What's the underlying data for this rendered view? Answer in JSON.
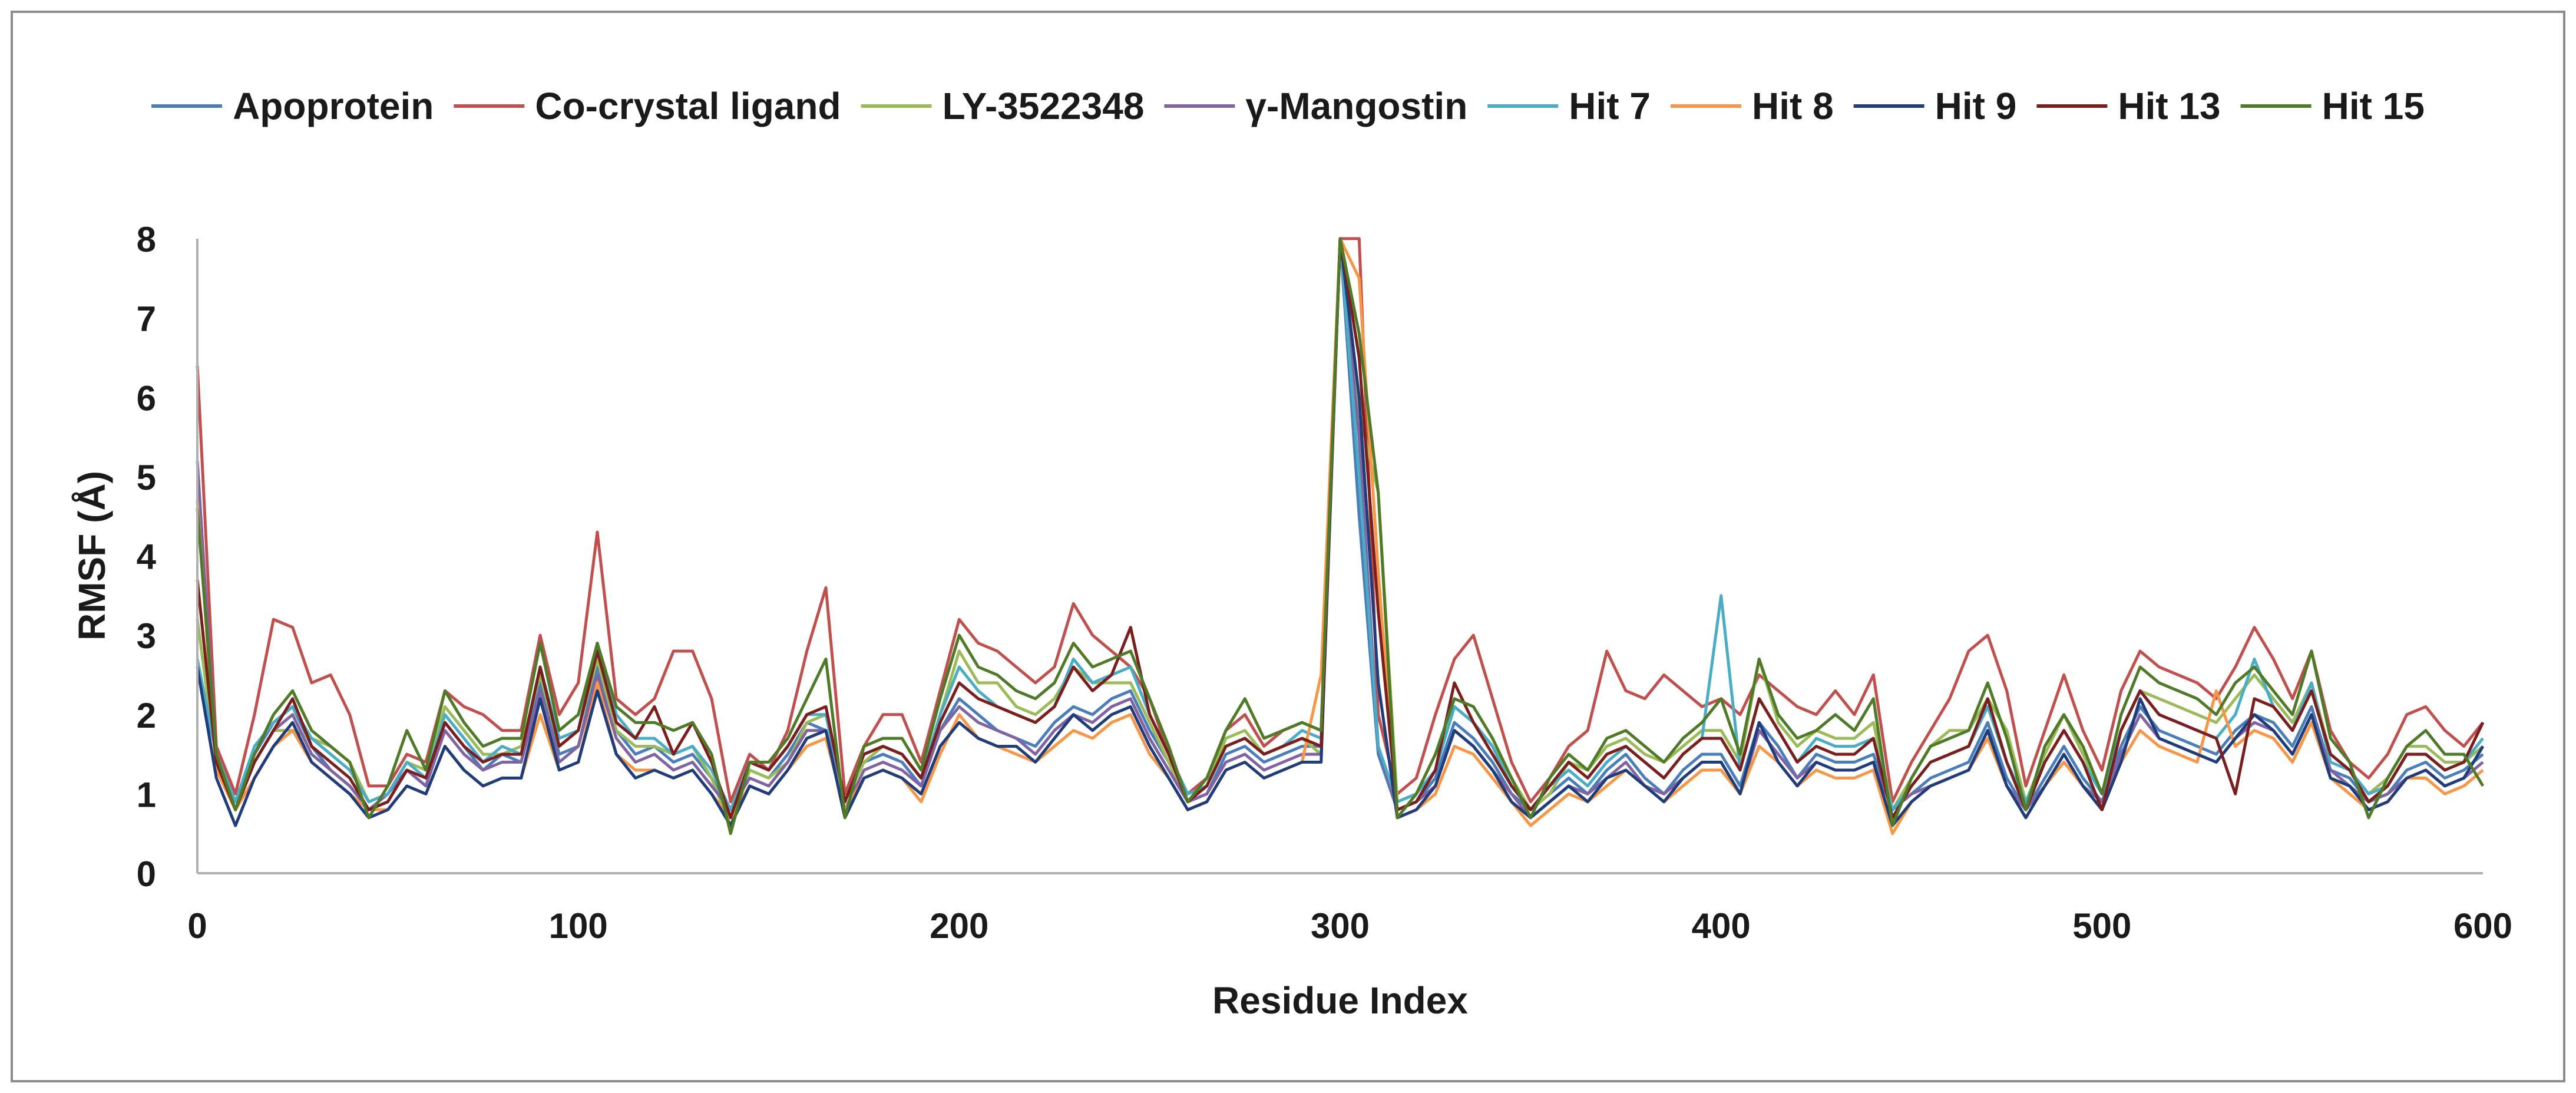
{
  "chart_data": {
    "type": "line",
    "title": "",
    "xlabel": "Residue Index",
    "ylabel": "RMSF (Å)",
    "xlim": [
      0,
      600
    ],
    "ylim": [
      0,
      8
    ],
    "xticks": [
      0,
      100,
      200,
      300,
      400,
      500,
      600
    ],
    "yticks": [
      0,
      1,
      2,
      3,
      4,
      5,
      6,
      7,
      8
    ],
    "x_tick_labels": [
      "0",
      "100",
      "200",
      "300",
      "400",
      "500",
      "600"
    ],
    "y_tick_labels": [
      "0",
      "1",
      "2",
      "3",
      "4",
      "5",
      "6",
      "7",
      "8"
    ],
    "grid": false,
    "legend_position": "top",
    "x": [
      0,
      5,
      10,
      15,
      20,
      25,
      30,
      35,
      40,
      45,
      50,
      55,
      60,
      65,
      70,
      75,
      80,
      85,
      90,
      95,
      100,
      105,
      110,
      115,
      120,
      125,
      130,
      135,
      140,
      145,
      150,
      155,
      160,
      165,
      170,
      175,
      180,
      185,
      190,
      195,
      200,
      205,
      210,
      215,
      220,
      225,
      230,
      235,
      240,
      245,
      250,
      255,
      260,
      265,
      270,
      275,
      280,
      285,
      290,
      295,
      300,
      305,
      310,
      315,
      320,
      325,
      330,
      335,
      340,
      345,
      350,
      355,
      360,
      365,
      370,
      375,
      380,
      385,
      390,
      395,
      400,
      405,
      410,
      415,
      420,
      425,
      430,
      435,
      440,
      445,
      450,
      455,
      460,
      465,
      470,
      475,
      480,
      485,
      490,
      495,
      500,
      505,
      510,
      515,
      520,
      525,
      530,
      535,
      540,
      545,
      550,
      555,
      560,
      565,
      570,
      575,
      580,
      585,
      590,
      595,
      600
    ],
    "series": [
      {
        "name": "Apoprotein",
        "color": "#4a7ebb",
        "values": [
          2.6,
          1.5,
          0.9,
          1.5,
          1.9,
          2.1,
          1.6,
          1.3,
          1.1,
          0.8,
          0.9,
          1.3,
          1.1,
          1.9,
          1.6,
          1.3,
          1.5,
          1.4,
          2.4,
          1.5,
          1.6,
          2.6,
          1.8,
          1.5,
          1.6,
          1.4,
          1.5,
          1.2,
          0.8,
          1.3,
          1.2,
          1.5,
          1.9,
          1.8,
          0.9,
          1.4,
          1.5,
          1.4,
          1.1,
          1.8,
          2.2,
          2.0,
          1.8,
          1.7,
          1.6,
          1.9,
          2.1,
          2.0,
          2.2,
          2.3,
          1.8,
          1.4,
          0.9,
          1.0,
          1.5,
          1.6,
          1.4,
          1.5,
          1.6,
          1.6,
          8.0,
          4.5,
          1.5,
          0.8,
          0.9,
          1.2,
          1.9,
          1.7,
          1.4,
          1.0,
          0.8,
          1.0,
          1.2,
          1.0,
          1.3,
          1.5,
          1.2,
          1.0,
          1.3,
          1.5,
          1.5,
          1.1,
          1.9,
          1.6,
          1.2,
          1.5,
          1.4,
          1.4,
          1.5,
          0.8,
          1.0,
          1.2,
          1.3,
          1.4,
          1.9,
          1.2,
          0.8,
          1.2,
          1.6,
          1.2,
          0.9,
          1.6,
          2.1,
          1.8,
          1.7,
          1.6,
          1.5,
          1.8,
          2.0,
          1.9,
          1.6,
          2.1,
          1.3,
          1.2,
          0.9,
          1.0,
          1.3,
          1.4,
          1.2,
          1.3,
          1.5
        ]
      },
      {
        "name": "Co-crystal ligand",
        "color": "#c0504d",
        "values": [
          6.4,
          1.6,
          1.0,
          2.0,
          3.2,
          3.1,
          2.4,
          2.5,
          2.0,
          1.1,
          1.1,
          1.5,
          1.4,
          2.3,
          2.1,
          2.0,
          1.8,
          1.8,
          3.0,
          2.0,
          2.4,
          4.3,
          2.2,
          2.0,
          2.2,
          2.8,
          2.8,
          2.2,
          0.9,
          1.5,
          1.3,
          1.8,
          2.8,
          3.6,
          1.0,
          1.6,
          2.0,
          2.0,
          1.4,
          2.3,
          3.2,
          2.9,
          2.8,
          2.6,
          2.4,
          2.6,
          3.4,
          3.0,
          2.8,
          2.6,
          2.2,
          1.5,
          1.0,
          1.2,
          1.8,
          2.0,
          1.6,
          1.8,
          1.9,
          1.8,
          8.0,
          8.0,
          2.0,
          1.0,
          1.2,
          2.0,
          2.7,
          3.0,
          2.2,
          1.4,
          0.9,
          1.2,
          1.6,
          1.8,
          2.8,
          2.3,
          2.2,
          2.5,
          2.3,
          2.1,
          2.2,
          2.0,
          2.5,
          2.3,
          2.1,
          2.0,
          2.3,
          2.0,
          2.5,
          0.9,
          1.4,
          1.8,
          2.2,
          2.8,
          3.0,
          2.3,
          1.1,
          1.8,
          2.5,
          1.8,
          1.3,
          2.3,
          2.8,
          2.6,
          2.5,
          2.4,
          2.2,
          2.6,
          3.1,
          2.7,
          2.2,
          2.8,
          1.8,
          1.4,
          1.2,
          1.5,
          2.0,
          2.1,
          1.8,
          1.6,
          1.9
        ]
      },
      {
        "name": "LY-3522348",
        "color": "#9bbb59",
        "values": [
          3.2,
          1.4,
          0.9,
          1.4,
          1.8,
          1.8,
          1.7,
          1.6,
          1.4,
          0.9,
          1.0,
          1.4,
          1.3,
          2.1,
          1.8,
          1.5,
          1.5,
          1.6,
          2.5,
          1.6,
          1.8,
          2.7,
          1.8,
          1.6,
          1.6,
          1.5,
          1.6,
          1.2,
          0.6,
          1.3,
          1.2,
          1.4,
          1.9,
          2.0,
          0.9,
          1.4,
          1.6,
          1.5,
          1.2,
          2.0,
          2.8,
          2.4,
          2.4,
          2.1,
          2.0,
          2.2,
          2.6,
          2.4,
          2.4,
          2.4,
          1.9,
          1.4,
          0.9,
          1.1,
          1.7,
          1.8,
          1.5,
          1.6,
          1.7,
          1.5,
          8.0,
          5.8,
          4.8,
          0.9,
          1.0,
          1.5,
          2.1,
          1.9,
          1.6,
          1.2,
          0.8,
          1.0,
          1.4,
          1.3,
          1.6,
          1.7,
          1.5,
          1.4,
          1.6,
          1.8,
          1.8,
          1.4,
          2.7,
          1.9,
          1.6,
          1.8,
          1.7,
          1.7,
          1.9,
          0.8,
          1.2,
          1.6,
          1.8,
          1.8,
          2.2,
          1.8,
          0.9,
          1.5,
          2.0,
          1.5,
          1.0,
          1.8,
          2.3,
          2.2,
          2.1,
          2.0,
          1.9,
          2.2,
          2.5,
          2.2,
          1.9,
          2.4,
          1.5,
          1.3,
          1.0,
          1.2,
          1.6,
          1.6,
          1.4,
          1.4,
          1.6
        ]
      },
      {
        "name": "γ-Mangostin",
        "color": "#8064a2",
        "values": [
          5.2,
          1.4,
          0.8,
          1.4,
          1.8,
          2.0,
          1.5,
          1.3,
          1.1,
          0.8,
          1.0,
          1.3,
          1.1,
          1.8,
          1.5,
          1.3,
          1.4,
          1.4,
          2.3,
          1.4,
          1.6,
          2.5,
          1.7,
          1.4,
          1.5,
          1.3,
          1.4,
          1.1,
          0.8,
          1.2,
          1.1,
          1.4,
          1.8,
          1.8,
          0.8,
          1.3,
          1.4,
          1.3,
          1.1,
          1.8,
          2.1,
          1.9,
          1.8,
          1.7,
          1.5,
          1.8,
          2.0,
          1.9,
          2.1,
          2.2,
          1.7,
          1.3,
          0.9,
          1.0,
          1.4,
          1.5,
          1.3,
          1.4,
          1.5,
          1.5,
          8.0,
          5.5,
          1.6,
          0.8,
          0.9,
          1.1,
          1.8,
          1.6,
          1.3,
          1.0,
          0.7,
          0.9,
          1.1,
          1.0,
          1.2,
          1.4,
          1.1,
          1.0,
          1.2,
          1.4,
          1.4,
          1.0,
          1.8,
          1.5,
          1.2,
          1.4,
          1.3,
          1.3,
          1.4,
          0.8,
          1.0,
          1.1,
          1.2,
          1.3,
          1.8,
          1.1,
          0.8,
          1.1,
          1.5,
          1.1,
          0.9,
          1.5,
          2.0,
          1.7,
          1.6,
          1.5,
          1.4,
          1.7,
          1.9,
          1.8,
          1.5,
          2.0,
          1.3,
          1.1,
          0.9,
          1.0,
          1.2,
          1.3,
          1.1,
          1.2,
          1.4
        ]
      },
      {
        "name": "Hit 7",
        "color": "#4bacc6",
        "values": [
          2.7,
          1.5,
          0.9,
          1.6,
          1.9,
          2.1,
          1.7,
          1.5,
          1.3,
          0.9,
          1.0,
          1.4,
          1.2,
          2.0,
          1.7,
          1.4,
          1.6,
          1.5,
          2.6,
          1.7,
          1.8,
          2.9,
          2.0,
          1.7,
          1.7,
          1.5,
          1.6,
          1.3,
          0.8,
          1.4,
          1.3,
          1.6,
          2.0,
          2.0,
          0.9,
          1.5,
          1.6,
          1.5,
          1.2,
          2.0,
          2.6,
          2.3,
          2.1,
          2.0,
          1.9,
          2.1,
          2.7,
          2.4,
          2.5,
          2.6,
          2.0,
          1.5,
          1.0,
          1.1,
          1.6,
          1.7,
          1.5,
          1.6,
          1.8,
          1.7,
          8.0,
          5.0,
          1.6,
          0.9,
          1.0,
          1.3,
          2.1,
          1.9,
          1.6,
          1.1,
          0.8,
          1.1,
          1.3,
          1.1,
          1.4,
          1.6,
          1.4,
          1.2,
          1.5,
          1.7,
          3.5,
          1.3,
          2.2,
          1.8,
          1.4,
          1.7,
          1.6,
          1.6,
          1.7,
          0.8,
          1.1,
          1.4,
          1.5,
          1.6,
          2.1,
          1.4,
          0.9,
          1.4,
          1.8,
          1.4,
          1.0,
          1.8,
          2.3,
          2.0,
          1.9,
          1.8,
          1.7,
          2.0,
          2.7,
          2.1,
          1.8,
          2.4,
          1.4,
          1.3,
          1.0,
          1.1,
          1.5,
          1.5,
          1.3,
          1.4,
          1.7
        ]
      },
      {
        "name": "Hit 8",
        "color": "#f79646",
        "values": [
          4.7,
          1.3,
          0.8,
          1.2,
          1.6,
          1.8,
          1.4,
          1.2,
          1.0,
          0.8,
          0.8,
          1.1,
          1.0,
          1.6,
          1.3,
          1.1,
          1.2,
          1.2,
          2.0,
          1.3,
          1.4,
          2.4,
          1.5,
          1.3,
          1.3,
          1.2,
          1.3,
          1.0,
          0.7,
          1.1,
          1.0,
          1.3,
          1.6,
          1.7,
          0.8,
          1.2,
          1.3,
          1.2,
          0.9,
          1.5,
          2.0,
          1.7,
          1.6,
          1.5,
          1.4,
          1.6,
          1.8,
          1.7,
          1.9,
          2.0,
          1.5,
          1.2,
          0.8,
          0.9,
          1.3,
          1.4,
          1.2,
          1.3,
          1.4,
          2.5,
          8.0,
          7.5,
          3.8,
          0.7,
          0.8,
          1.0,
          1.6,
          1.5,
          1.2,
          0.9,
          0.6,
          0.8,
          1.0,
          0.9,
          1.1,
          1.3,
          1.1,
          0.9,
          1.1,
          1.3,
          1.3,
          1.0,
          1.6,
          1.4,
          1.1,
          1.3,
          1.2,
          1.2,
          1.3,
          0.5,
          0.9,
          1.1,
          1.2,
          1.3,
          1.7,
          1.1,
          0.7,
          1.1,
          1.4,
          1.1,
          0.8,
          1.4,
          1.8,
          1.6,
          1.5,
          1.4,
          2.3,
          1.6,
          1.8,
          1.7,
          1.4,
          1.9,
          1.2,
          1.0,
          0.8,
          0.9,
          1.2,
          1.2,
          1.0,
          1.1,
          1.3
        ]
      },
      {
        "name": "Hit 9",
        "color": "#1f3d7a",
        "values": [
          2.6,
          1.2,
          0.6,
          1.2,
          1.6,
          1.9,
          1.4,
          1.2,
          1.0,
          0.7,
          0.8,
          1.1,
          1.0,
          1.6,
          1.3,
          1.1,
          1.2,
          1.2,
          2.2,
          1.3,
          1.4,
          2.3,
          1.5,
          1.2,
          1.3,
          1.2,
          1.3,
          1.0,
          0.6,
          1.1,
          1.0,
          1.3,
          1.7,
          1.8,
          0.7,
          1.2,
          1.3,
          1.2,
          1.0,
          1.6,
          1.9,
          1.7,
          1.6,
          1.6,
          1.4,
          1.7,
          2.0,
          1.8,
          2.0,
          2.1,
          1.6,
          1.2,
          0.8,
          0.9,
          1.3,
          1.4,
          1.2,
          1.3,
          1.4,
          1.4,
          8.0,
          6.0,
          2.4,
          0.7,
          0.8,
          1.1,
          1.8,
          1.6,
          1.3,
          0.9,
          0.7,
          0.9,
          1.1,
          0.9,
          1.2,
          1.3,
          1.1,
          0.9,
          1.2,
          1.4,
          1.4,
          1.0,
          1.9,
          1.4,
          1.1,
          1.4,
          1.3,
          1.3,
          1.4,
          0.6,
          0.9,
          1.1,
          1.2,
          1.3,
          1.8,
          1.1,
          0.7,
          1.1,
          1.5,
          1.1,
          0.8,
          1.4,
          2.2,
          1.7,
          1.6,
          1.5,
          1.4,
          1.7,
          2.0,
          1.8,
          1.5,
          2.0,
          1.2,
          1.1,
          0.8,
          0.9,
          1.2,
          1.3,
          1.1,
          1.2,
          1.6
        ]
      },
      {
        "name": "Hit 13",
        "color": "#7b1e1e",
        "values": [
          3.7,
          1.4,
          0.8,
          1.4,
          1.8,
          2.2,
          1.6,
          1.4,
          1.2,
          0.8,
          0.9,
          1.3,
          1.2,
          1.9,
          1.6,
          1.4,
          1.5,
          1.5,
          2.6,
          1.6,
          1.8,
          2.8,
          1.9,
          1.7,
          2.1,
          1.5,
          1.9,
          1.4,
          0.7,
          1.4,
          1.3,
          1.6,
          2.0,
          2.1,
          0.9,
          1.5,
          1.6,
          1.5,
          1.2,
          1.9,
          2.4,
          2.2,
          2.1,
          2.0,
          1.9,
          2.1,
          2.6,
          2.3,
          2.5,
          3.1,
          2.0,
          1.5,
          0.9,
          1.1,
          1.6,
          1.7,
          1.5,
          1.6,
          1.7,
          1.6,
          8.0,
          6.5,
          3.3,
          0.8,
          0.9,
          1.3,
          2.4,
          1.9,
          1.5,
          1.1,
          0.8,
          1.1,
          1.4,
          1.2,
          1.5,
          1.6,
          1.4,
          1.2,
          1.5,
          1.7,
          1.7,
          1.3,
          2.2,
          1.8,
          1.4,
          1.6,
          1.5,
          1.5,
          1.7,
          0.7,
          1.1,
          1.4,
          1.5,
          1.6,
          2.2,
          1.4,
          0.8,
          1.4,
          1.8,
          1.4,
          0.8,
          1.8,
          2.3,
          2.0,
          1.9,
          1.8,
          1.7,
          1.0,
          2.2,
          2.1,
          1.8,
          2.3,
          1.5,
          1.3,
          0.9,
          1.1,
          1.5,
          1.5,
          1.3,
          1.4,
          1.9
        ]
      },
      {
        "name": "Hit 15",
        "color": "#4f7a28",
        "values": [
          4.6,
          1.5,
          0.8,
          1.5,
          2.0,
          2.3,
          1.8,
          1.6,
          1.4,
          0.7,
          1.1,
          1.8,
          1.3,
          2.3,
          1.9,
          1.6,
          1.7,
          1.7,
          2.9,
          1.8,
          2.0,
          2.9,
          2.1,
          1.9,
          1.9,
          1.8,
          1.9,
          1.5,
          0.5,
          1.4,
          1.4,
          1.7,
          2.2,
          2.7,
          0.7,
          1.6,
          1.7,
          1.7,
          1.3,
          2.2,
          3.0,
          2.6,
          2.5,
          2.3,
          2.2,
          2.4,
          2.9,
          2.6,
          2.7,
          2.8,
          2.2,
          1.6,
          0.9,
          1.2,
          1.8,
          2.2,
          1.7,
          1.8,
          1.9,
          1.8,
          8.0,
          6.8,
          4.8,
          0.7,
          1.0,
          1.5,
          2.2,
          2.1,
          1.7,
          1.2,
          0.7,
          1.2,
          1.5,
          1.3,
          1.7,
          1.8,
          1.6,
          1.4,
          1.7,
          1.9,
          2.2,
          1.5,
          2.7,
          2.0,
          1.7,
          1.8,
          2.0,
          1.8,
          2.2,
          0.6,
          1.2,
          1.6,
          1.7,
          1.8,
          2.4,
          1.7,
          0.8,
          1.6,
          2.0,
          1.6,
          1.0,
          2.0,
          2.6,
          2.4,
          2.3,
          2.2,
          2.0,
          2.4,
          2.6,
          2.3,
          2.0,
          2.8,
          1.7,
          1.4,
          0.7,
          1.2,
          1.6,
          1.8,
          1.5,
          1.5,
          1.1
        ]
      }
    ]
  }
}
